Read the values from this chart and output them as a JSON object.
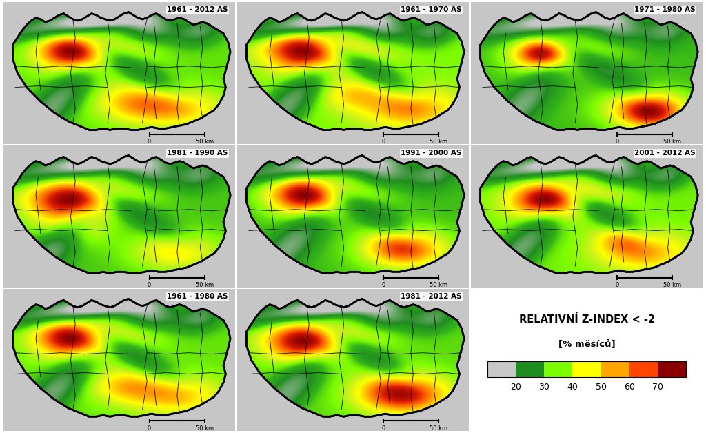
{
  "title": "RELATIVNÍ Z-INDEX < -2",
  "subtitle": "[% měsíců]",
  "map_titles": [
    "1961 - 2012 AS",
    "1961 - 1970 AS",
    "1971 - 1980 AS",
    "1981 - 1990 AS",
    "1991 - 2000 AS",
    "2001 - 2012 AS",
    "1961 - 1980 AS",
    "1981 - 2012 AS"
  ],
  "legend_colors": [
    "#c8c8c8",
    "#1e8c1e",
    "#7cfc00",
    "#ffff00",
    "#ffa500",
    "#ff4500",
    "#8b0000"
  ],
  "legend_labels": [
    "20",
    "30",
    "40",
    "50",
    "60",
    "70"
  ],
  "background_color": "#ffffff",
  "figsize": [
    10.24,
    6.28
  ],
  "dpi": 100,
  "map_bg_color": "#c8c8c8",
  "outer_bg": "#ffffff"
}
